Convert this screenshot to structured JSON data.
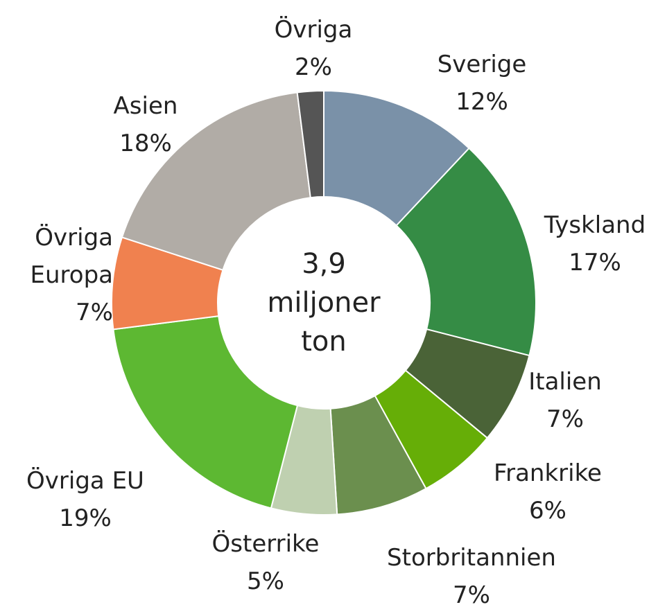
{
  "chart_data": {
    "type": "donut",
    "categories": [
      "Sverige",
      "Tyskland",
      "Italien",
      "Frankrike",
      "Storbritannien",
      "Österrike",
      "Övriga EU",
      "Övriga Europa",
      "Asien",
      "Övriga"
    ],
    "values": [
      12,
      17,
      7,
      6,
      7,
      5,
      19,
      7,
      18,
      2
    ],
    "value_labels": [
      "12%",
      "17%",
      "7%",
      "6%",
      "7%",
      "5%",
      "19%",
      "7%",
      "18%",
      "2%"
    ],
    "colors": [
      "#7a91a8",
      "#358c45",
      "#4a6337",
      "#66ae07",
      "#6b8f4e",
      "#bfd0b0",
      "#5db832",
      "#f0814f",
      "#b1aca6",
      "#555555"
    ],
    "center_text": [
      "3,9",
      "miljoner",
      "ton"
    ]
  }
}
